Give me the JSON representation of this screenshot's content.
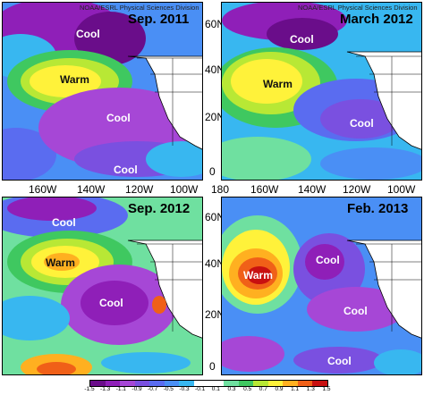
{
  "credit": "NOAA/ESRL Physical Sciences Division",
  "panels": [
    {
      "title": "Sep. 2011",
      "labels": [
        "Cool",
        "Warm",
        "Cool",
        "Cool"
      ]
    },
    {
      "title": "March 2012",
      "labels": [
        "Cool",
        "Warm",
        "Cool"
      ]
    },
    {
      "title": "Sep. 2012",
      "labels": [
        "Cool",
        "Warm",
        "Cool"
      ]
    },
    {
      "title": "Feb. 2013",
      "labels": [
        "Warm",
        "Cool",
        "Cool",
        "Cool"
      ]
    }
  ],
  "lat_labels": [
    "60N",
    "40N",
    "20N",
    "0"
  ],
  "lon_labels_top_row": [
    "160W",
    "140W",
    "120W",
    "100W"
  ],
  "lon_labels_bottom_row": [
    "180",
    "160W",
    "140W",
    "120W",
    "100W"
  ],
  "colorbar": {
    "ticks": [
      "-1.5",
      "-1.3",
      "-1.1",
      "-0.9",
      "-0.7",
      "-0.5",
      "-0.3",
      "-0.1",
      "0.1",
      "0.3",
      "0.5",
      "0.7",
      "0.9",
      "1.1",
      "1.3",
      "1.5"
    ],
    "colors": [
      "#6a0d8a",
      "#8f1fb8",
      "#a647d6",
      "#7a50e0",
      "#5a6cf0",
      "#4a8ff5",
      "#38b7f0",
      "#ffffff",
      "#ffffff",
      "#6fe0a0",
      "#3fc860",
      "#b8e835",
      "#fff23a",
      "#ffb020",
      "#f06018",
      "#c81010"
    ]
  }
}
